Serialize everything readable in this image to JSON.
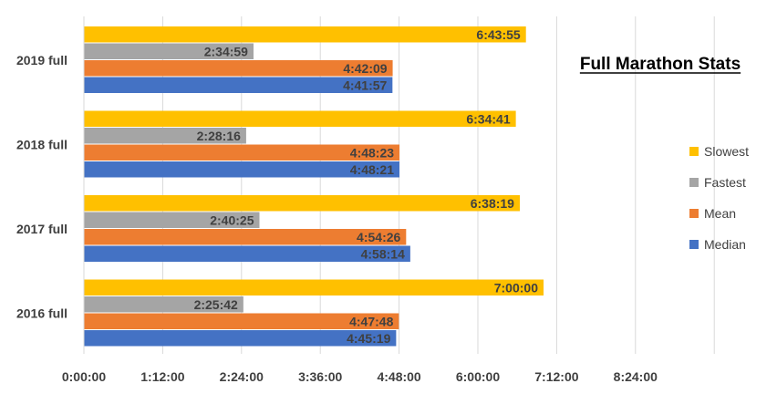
{
  "chart_data": {
    "type": "bar",
    "orientation": "horizontal",
    "title": "Full Marathon Stats",
    "categories": [
      "2019 full",
      "2018 full",
      "2017 full",
      "2016 full"
    ],
    "x_ticks": [
      "0:00:00",
      "1:12:00",
      "2:24:00",
      "3:36:00",
      "4:48:00",
      "6:00:00",
      "7:12:00",
      "8:24:00"
    ],
    "xlim": [
      "0:00:00",
      "9:36:00"
    ],
    "grid": true,
    "legend_position": "right",
    "series": [
      {
        "name": "Slowest",
        "color": "#ffc000",
        "values": [
          "6:43:55",
          "6:34:41",
          "6:38:19",
          "7:00:00"
        ]
      },
      {
        "name": "Fastest",
        "color": "#a5a5a5",
        "values": [
          "2:34:59",
          "2:28:16",
          "2:40:25",
          "2:25:42"
        ]
      },
      {
        "name": "Mean",
        "color": "#ed7d31",
        "values": [
          "4:42:09",
          "4:48:23",
          "4:54:26",
          "4:47:48"
        ]
      },
      {
        "name": "Median",
        "color": "#4472c4",
        "values": [
          "4:41:57",
          "4:48:21",
          "4:58:14",
          "4:45:19"
        ]
      }
    ]
  }
}
